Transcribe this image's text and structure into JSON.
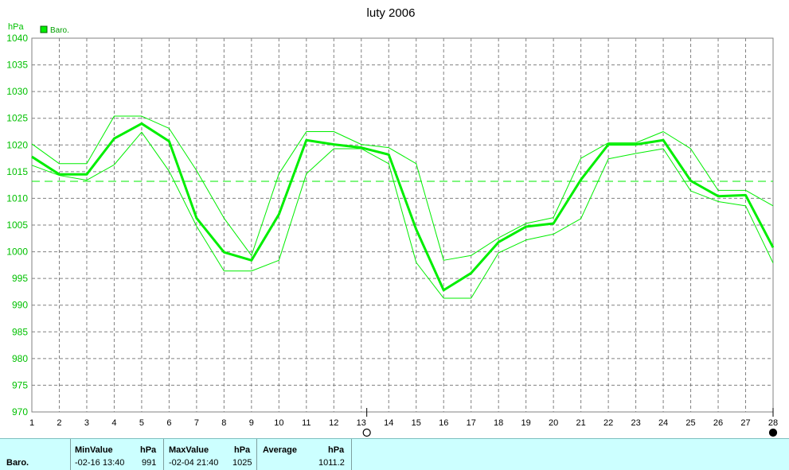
{
  "chart_data": {
    "type": "line",
    "title": "luty 2006",
    "ylabel": "hPa",
    "ylim": [
      970,
      1040
    ],
    "yticks": [
      970,
      975,
      980,
      985,
      990,
      995,
      1000,
      1005,
      1010,
      1015,
      1020,
      1025,
      1030,
      1035,
      1040
    ],
    "x": [
      1,
      2,
      3,
      4,
      5,
      6,
      7,
      8,
      9,
      10,
      11,
      12,
      13,
      14,
      15,
      16,
      17,
      18,
      19,
      20,
      21,
      22,
      23,
      24,
      25,
      26,
      27,
      28
    ],
    "xlim": [
      1,
      28
    ],
    "grid": true,
    "legend": {
      "label": "Baro.",
      "placement": "top-left"
    },
    "average_line": 1013.2,
    "series": [
      {
        "name": "Baro.",
        "role": "mean",
        "values": [
          1017.8,
          1014.5,
          1014.5,
          1021.2,
          1024.0,
          1020.7,
          1006.3,
          999.9,
          998.4,
          1007.0,
          1020.9,
          1020.1,
          1019.5,
          1018.2,
          1004.2,
          992.8,
          996.0,
          1001.8,
          1004.7,
          1005.3,
          1013.5,
          1020.1,
          1020.1,
          1020.9,
          1013.3,
          1010.4,
          1010.6,
          1000.8
        ]
      },
      {
        "name": "",
        "role": "max",
        "values": [
          1020.2,
          1016.5,
          1016.5,
          1025.4,
          1025.4,
          1023.1,
          1015.2,
          1006.3,
          999.3,
          1014.6,
          1022.5,
          1022.5,
          1020.1,
          1019.5,
          1016.5,
          998.4,
          999.3,
          1002.6,
          1005.3,
          1006.4,
          1017.5,
          1020.4,
          1020.4,
          1022.5,
          1019.3,
          1011.5,
          1011.5,
          1008.6
        ]
      },
      {
        "name": "",
        "role": "min",
        "values": [
          1016.2,
          1014.3,
          1013.4,
          1016.3,
          1022.4,
          1015.1,
          1004.8,
          996.4,
          996.4,
          998.4,
          1014.6,
          1019.3,
          1019.3,
          1016.5,
          998.0,
          991.3,
          991.3,
          999.8,
          1002.2,
          1003.3,
          1006.2,
          1017.4,
          1018.4,
          1019.3,
          1011.4,
          1009.4,
          1008.6,
          997.9
        ]
      }
    ],
    "markers": [
      {
        "x": 13.2,
        "symbol": "open-circle"
      },
      {
        "x": 28,
        "symbol": "filled-circle"
      }
    ]
  },
  "stats": {
    "row_label": "Baro.",
    "min_header": "MinValue",
    "min_unit": "hPa",
    "min_time": "-02-16  13:40",
    "min_value": "991",
    "max_header": "MaxValue",
    "max_unit": "hPa",
    "max_time": "-02-04  21:40",
    "max_value": "1025",
    "avg_header": "Average",
    "avg_unit": "hPa",
    "avg_value": "1011.2"
  },
  "colors": {
    "series": "#00ee00",
    "axis_text": "#00c000",
    "grid": "#808080",
    "stats_bg": "#ccffff"
  }
}
